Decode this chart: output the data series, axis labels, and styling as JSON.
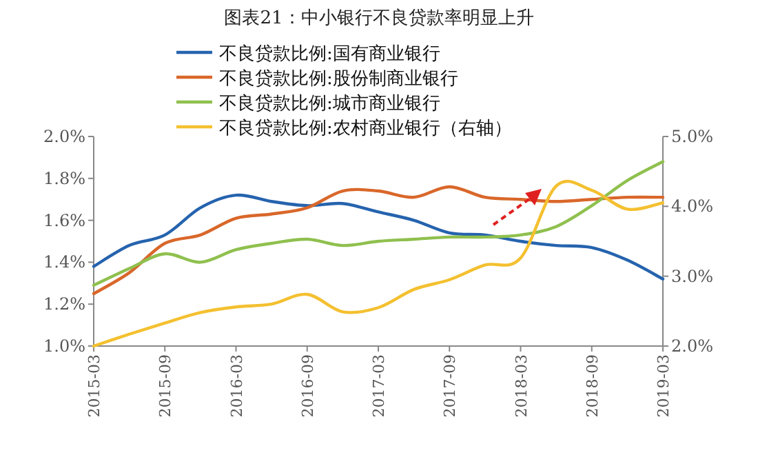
{
  "chart_data": {
    "type": "line",
    "title": "图表21：中小银行不良贷款率明显上升",
    "x": [
      "2015-03",
      "2015-06",
      "2015-09",
      "2015-12",
      "2016-03",
      "2016-06",
      "2016-09",
      "2016-12",
      "2017-03",
      "2017-06",
      "2017-09",
      "2017-12",
      "2018-03",
      "2018-06",
      "2018-09",
      "2018-12",
      "2019-03"
    ],
    "series": [
      {
        "name": "不良贷款比例:国有商业银行",
        "color": "#2563ae",
        "values": [
          1.38,
          1.48,
          1.53,
          1.66,
          1.72,
          1.69,
          1.67,
          1.68,
          1.64,
          1.6,
          1.54,
          1.53,
          1.5,
          1.48,
          1.47,
          1.41,
          1.32
        ]
      },
      {
        "name": "不良贷款比例:股份制商业银行",
        "color": "#d9672a",
        "values": [
          1.25,
          1.35,
          1.49,
          1.53,
          1.61,
          1.63,
          1.66,
          1.74,
          1.74,
          1.71,
          1.76,
          1.71,
          1.7,
          1.69,
          1.7,
          1.71,
          1.71
        ]
      },
      {
        "name": "不良贷款比例:城市商业银行",
        "color": "#8fc04e",
        "values": [
          1.29,
          1.37,
          1.44,
          1.4,
          1.46,
          1.49,
          1.51,
          1.48,
          1.5,
          1.51,
          1.52,
          1.52,
          1.53,
          1.57,
          1.67,
          1.79,
          1.88
        ]
      },
      {
        "name": "不良贷款比例:农村商业银行（右轴）",
        "color": "#f4c030",
        "axis": "y2",
        "values": [
          2.0,
          2.17,
          2.33,
          2.48,
          2.56,
          2.6,
          2.74,
          2.49,
          2.55,
          2.81,
          2.95,
          3.16,
          3.26,
          4.29,
          4.23,
          3.96,
          4.05
        ]
      }
    ],
    "xlim": [
      "2015-03",
      "2019-03"
    ],
    "xticks": [
      "2015-03",
      "2015-09",
      "2016-03",
      "2016-09",
      "2017-03",
      "2017-09",
      "2018-03",
      "2018-09",
      "2019-03"
    ],
    "ylim": [
      1.0,
      2.0
    ],
    "yticks": [
      {
        "value": 1.0,
        "label": "1.0%"
      },
      {
        "value": 1.2,
        "label": "1.2%"
      },
      {
        "value": 1.4,
        "label": "1.4%"
      },
      {
        "value": 1.6,
        "label": "1.6%"
      },
      {
        "value": 1.8,
        "label": "1.8%"
      },
      {
        "value": 2.0,
        "label": "2.0%"
      }
    ],
    "y2lim": [
      2.0,
      5.0
    ],
    "y2ticks": [
      {
        "value": 2,
        "label": "2.0%"
      },
      {
        "value": 3,
        "label": "3.0%"
      },
      {
        "value": 4,
        "label": "4.0%"
      },
      {
        "value": 5,
        "label": "5.0%"
      }
    ],
    "legend": "top left",
    "grid": false
  }
}
